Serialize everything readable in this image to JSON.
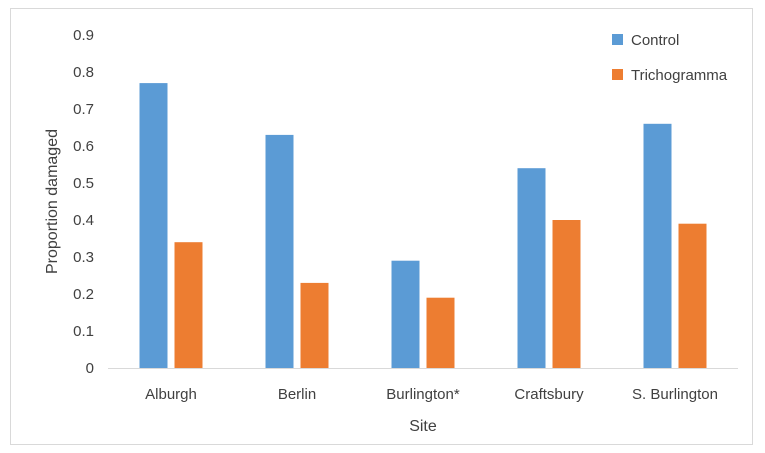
{
  "chart_data": {
    "type": "bar",
    "title": "",
    "xlabel": "Site",
    "ylabel": "Proportion damaged",
    "categories": [
      "Alburgh",
      "Berlin",
      "Burlington*",
      "Craftsbury",
      "S. Burlington"
    ],
    "series": [
      {
        "name": "Control",
        "color": "#5B9BD5",
        "values": [
          0.77,
          0.63,
          0.29,
          0.54,
          0.66
        ]
      },
      {
        "name": "Trichogramma",
        "color": "#ED7D31",
        "values": [
          0.34,
          0.23,
          0.19,
          0.4,
          0.39
        ]
      }
    ],
    "ylim": [
      0,
      0.9
    ],
    "yticks": [
      "0",
      "0.1",
      "0.2",
      "0.3",
      "0.4",
      "0.5",
      "0.6",
      "0.7",
      "0.8",
      "0.9"
    ],
    "grid": false,
    "legend": "top-right"
  }
}
